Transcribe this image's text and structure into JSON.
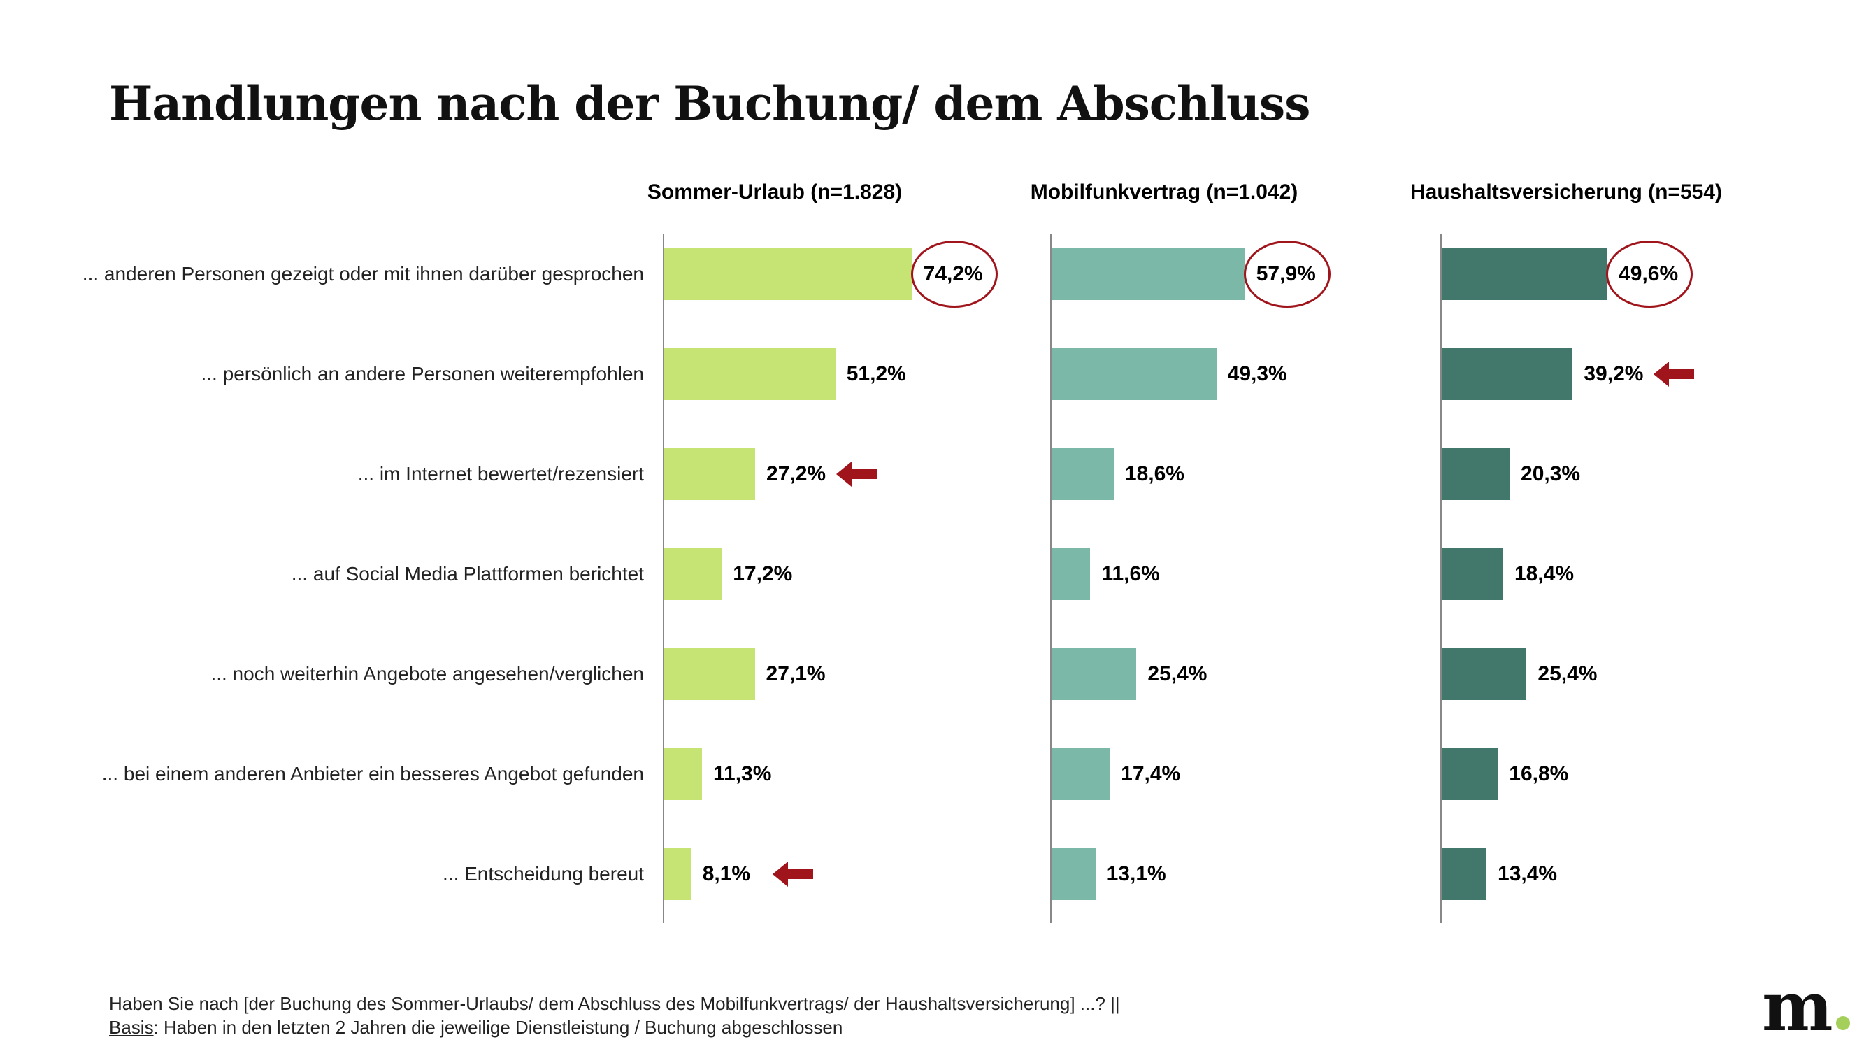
{
  "title": "Handlungen nach der Buchung/ dem Abschluss",
  "chart_data": {
    "type": "bar",
    "orientation": "horizontal",
    "categories": [
      "... anderen Personen gezeigt oder mit ihnen darüber gesprochen",
      "... persönlich an andere Personen weiterempfohlen",
      "... im Internet bewertet/rezensiert",
      "... auf Social Media Plattformen berichtet",
      "... noch weiterhin Angebote angesehen/verglichen",
      "... bei einem anderen Anbieter ein besseres Angebot gefunden",
      "... Entscheidung bereut"
    ],
    "series": [
      {
        "name": "Sommer-Urlaub (n=1.828)",
        "color": "#c5e473",
        "values": [
          74.2,
          51.2,
          27.2,
          17.2,
          27.1,
          11.3,
          8.1
        ],
        "labels": [
          "74,2%",
          "51,2%",
          "27,2%",
          "17,2%",
          "27,1%",
          "11,3%",
          "8,1%"
        ],
        "circled": [
          0
        ],
        "arrows": [
          2,
          6
        ]
      },
      {
        "name": "Mobilfunkvertrag (n=1.042)",
        "color": "#7bb8a7",
        "values": [
          57.9,
          49.3,
          18.6,
          11.6,
          25.4,
          17.4,
          13.1
        ],
        "labels": [
          "57,9%",
          "49,3%",
          "18,6%",
          "11,6%",
          "25,4%",
          "17,4%",
          "13,1%"
        ],
        "circled": [
          0
        ],
        "arrows": []
      },
      {
        "name": "Haushaltsversicherung (n=554)",
        "color": "#42776b",
        "values": [
          49.6,
          39.2,
          20.3,
          18.4,
          25.4,
          16.8,
          13.4
        ],
        "labels": [
          "49,6%",
          "39,2%",
          "20,3%",
          "18,4%",
          "25,4%",
          "16,8%",
          "13,4%"
        ],
        "circled": [
          0
        ],
        "arrows": [
          1
        ]
      }
    ],
    "highlight_color": "#a0141c"
  },
  "footnote": {
    "question": "Haben Sie nach [der Buchung des Sommer-Urlaubs/ dem Abschluss des Mobilfunkvertrags/ der Haushaltsversicherung] ...? ||",
    "basis_label": "Basis",
    "basis_text": ": Haben in den letzten 2 Jahren die jeweilige Dienstleistung / Buchung abgeschlossen"
  },
  "logo": {
    "letter": "m"
  }
}
